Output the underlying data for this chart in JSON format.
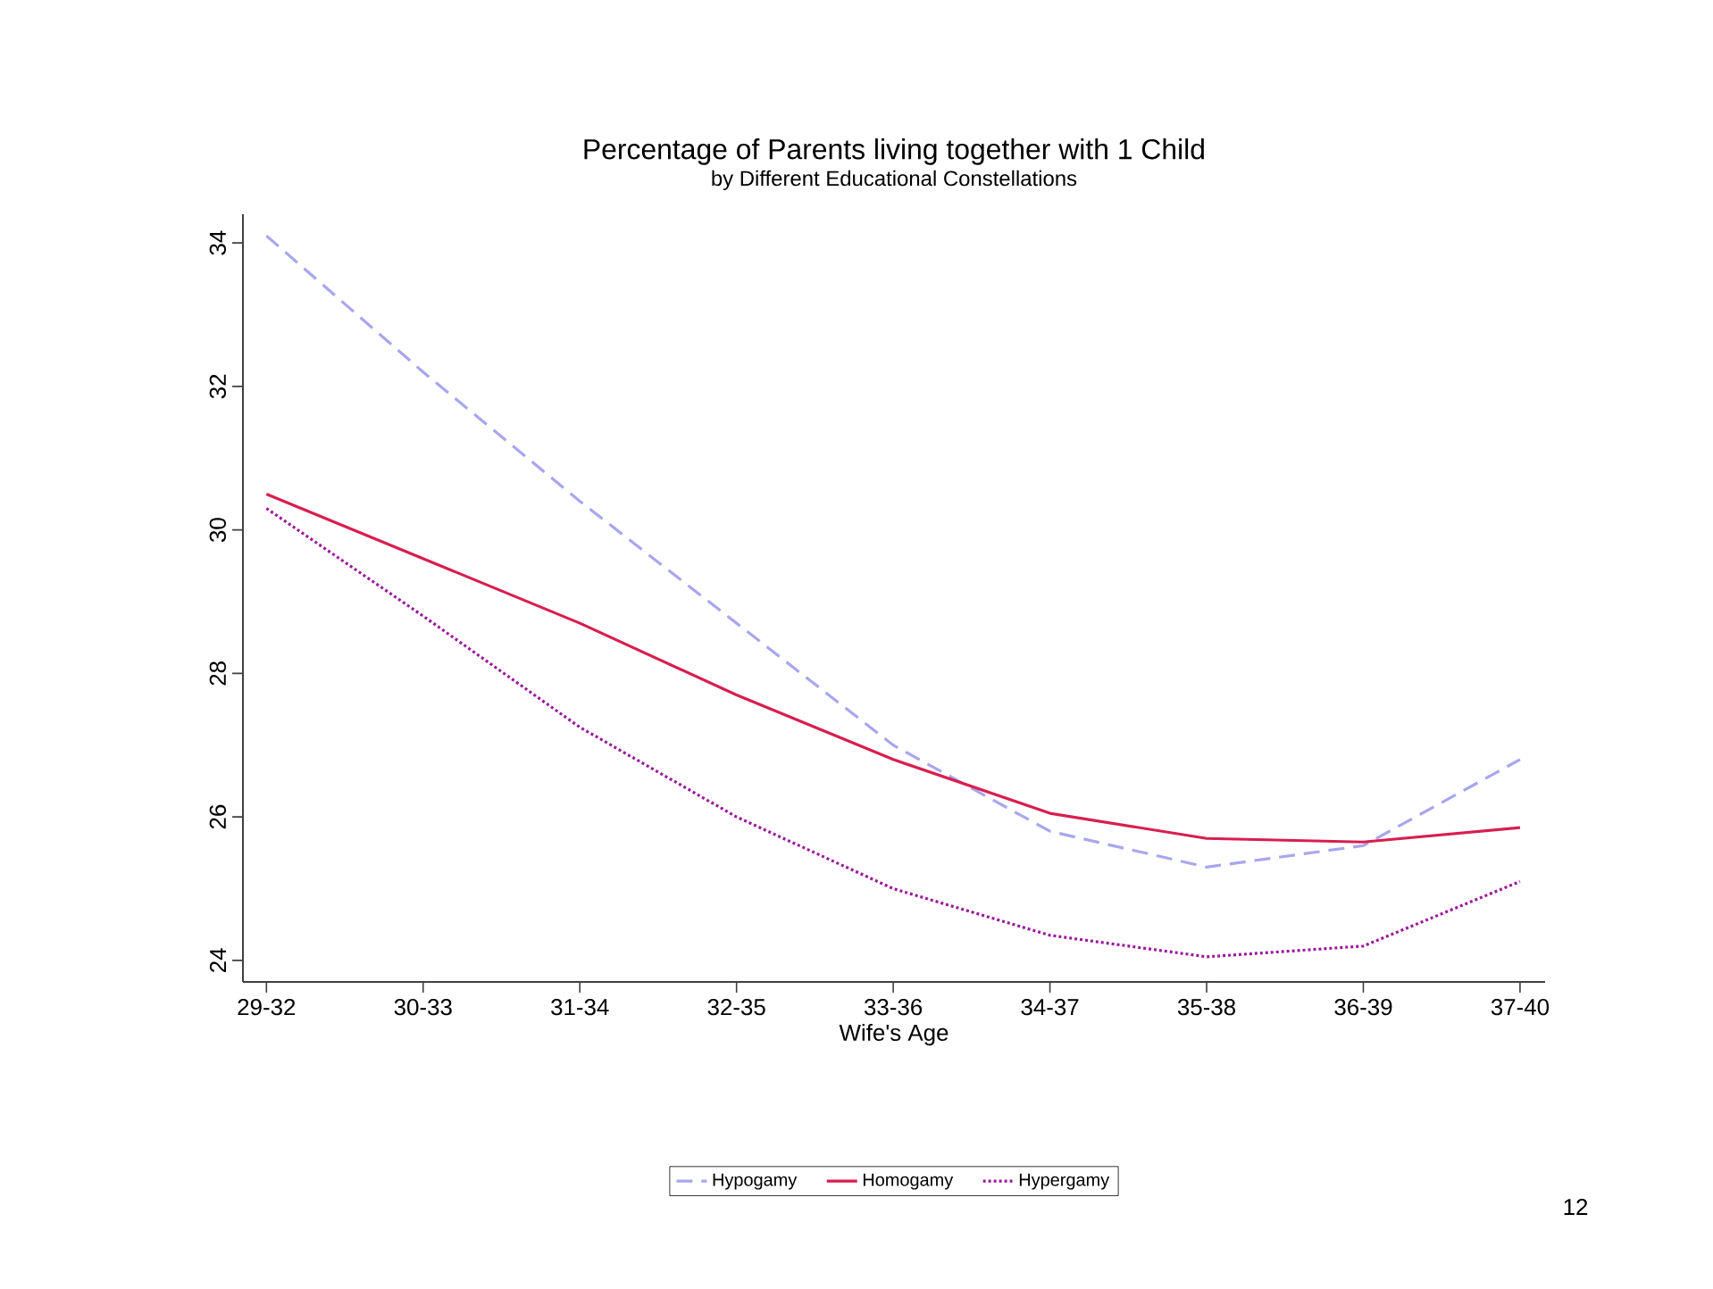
{
  "chart_data": {
    "type": "line",
    "title": "Percentage of Parents living together with 1 Child",
    "subtitle": "by Different Educational Constellations",
    "xlabel": "Wife's Age",
    "categories": [
      "29-32",
      "30-33",
      "31-34",
      "32-35",
      "33-36",
      "34-37",
      "35-38",
      "36-39",
      "37-40"
    ],
    "series": [
      {
        "name": "Hypogamy",
        "color": "#a9a6ee",
        "line_style": "dashed",
        "values": [
          34.1,
          32.2,
          30.4,
          28.7,
          27.0,
          25.8,
          25.3,
          25.6,
          26.8
        ]
      },
      {
        "name": "Homogamy",
        "color": "#d81e4f",
        "line_style": "solid",
        "values": [
          30.5,
          29.6,
          28.7,
          27.7,
          26.8,
          26.05,
          25.7,
          25.65,
          25.85
        ]
      },
      {
        "name": "Hypergamy",
        "color": "#9b189b",
        "line_style": "dotted",
        "values": [
          30.3,
          28.8,
          27.25,
          26.0,
          25.0,
          24.35,
          24.05,
          24.2,
          25.1
        ]
      }
    ],
    "ylim": [
      23.7,
      34.4
    ],
    "yticks": [
      24,
      26,
      28,
      30,
      32,
      34
    ],
    "grid": false,
    "legend": "bottom",
    "marker": "none",
    "annotations": [
      "12"
    ]
  }
}
